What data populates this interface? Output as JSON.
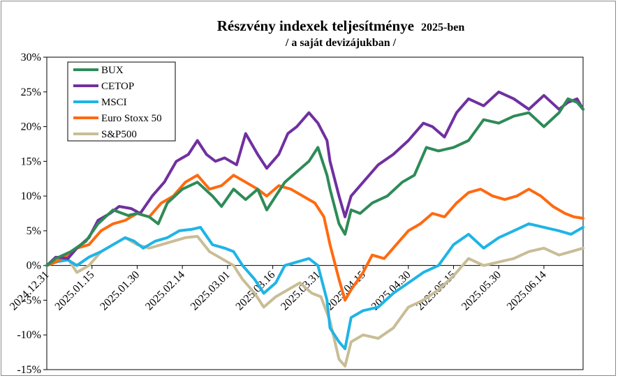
{
  "chart_data": {
    "type": "line",
    "title": "Részvény indexek teljesítménye",
    "title_suffix": "2025-ben",
    "subtitle": "/ a saját devizájukban /",
    "y_ticks": [
      "30%",
      "25%",
      "20%",
      "15%",
      "10%",
      "5%",
      "0%",
      "-5%",
      "-10%",
      "-15%"
    ],
    "x_ticks": [
      "2024.12.31",
      "2025.01.15",
      "2025.01.30",
      "2025.02.14",
      "2025.03.01",
      "2025.03.16",
      "2025.03.31",
      "2025.04.15",
      "2025.04.30",
      "2025.05.15",
      "2025.05.30",
      "2025.06.14"
    ],
    "ylim": [
      -15,
      30
    ],
    "xlim": [
      "2024.12.31",
      "2025.06.27"
    ],
    "grid": false,
    "legend": "top-left",
    "series": [
      {
        "name": "BUX",
        "color": "#2e8b57",
        "points": [
          [
            "2024.12.31",
            0
          ],
          [
            "2025.01.03",
            1
          ],
          [
            "2025.01.08",
            2
          ],
          [
            "2025.01.13",
            3.5
          ],
          [
            "2025.01.17",
            6
          ],
          [
            "2025.01.22",
            8
          ],
          [
            "2025.01.27",
            7.2
          ],
          [
            "2025.01.30",
            7.5
          ],
          [
            "2025.02.03",
            7
          ],
          [
            "2025.02.06",
            6
          ],
          [
            "2025.02.09",
            9
          ],
          [
            "2025.02.14",
            11
          ],
          [
            "2025.02.19",
            12
          ],
          [
            "2025.02.24",
            10
          ],
          [
            "2025.02.27",
            8.5
          ],
          [
            "2025.03.03",
            11
          ],
          [
            "2025.03.07",
            9.5
          ],
          [
            "2025.03.11",
            11
          ],
          [
            "2025.03.14",
            8
          ],
          [
            "2025.03.17",
            10
          ],
          [
            "2025.03.20",
            12
          ],
          [
            "2025.03.24",
            13.5
          ],
          [
            "2025.03.28",
            15
          ],
          [
            "2025.03.31",
            17
          ],
          [
            "2025.04.03",
            13
          ],
          [
            "2025.04.04",
            11
          ],
          [
            "2025.04.07",
            6
          ],
          [
            "2025.04.09",
            4.5
          ],
          [
            "2025.04.11",
            8
          ],
          [
            "2025.04.14",
            7.5
          ],
          [
            "2025.04.18",
            9
          ],
          [
            "2025.04.23",
            10
          ],
          [
            "2025.04.28",
            12
          ],
          [
            "2025.05.02",
            13
          ],
          [
            "2025.05.06",
            17
          ],
          [
            "2025.05.10",
            16.5
          ],
          [
            "2025.05.15",
            17
          ],
          [
            "2025.05.20",
            18
          ],
          [
            "2025.05.25",
            21
          ],
          [
            "2025.05.30",
            20.5
          ],
          [
            "2025.06.04",
            21.5
          ],
          [
            "2025.06.09",
            22
          ],
          [
            "2025.06.14",
            20
          ],
          [
            "2025.06.19",
            22
          ],
          [
            "2025.06.22",
            24
          ],
          [
            "2025.06.25",
            23.5
          ],
          [
            "2025.06.27",
            22.5
          ]
        ]
      },
      {
        "name": "CETOP",
        "color": "#7030a0",
        "points": [
          [
            "2024.12.31",
            0
          ],
          [
            "2025.01.03",
            1.2
          ],
          [
            "2025.01.07",
            1
          ],
          [
            "2025.01.10",
            2.5
          ],
          [
            "2025.01.14",
            4
          ],
          [
            "2025.01.17",
            6.5
          ],
          [
            "2025.01.21",
            7.5
          ],
          [
            "2025.01.24",
            8.5
          ],
          [
            "2025.01.28",
            8.2
          ],
          [
            "2025.01.31",
            7.5
          ],
          [
            "2025.02.04",
            10
          ],
          [
            "2025.02.08",
            12
          ],
          [
            "2025.02.12",
            15
          ],
          [
            "2025.02.16",
            16
          ],
          [
            "2025.02.19",
            18
          ],
          [
            "2025.02.22",
            16
          ],
          [
            "2025.02.25",
            15
          ],
          [
            "2025.02.28",
            15.5
          ],
          [
            "2025.03.04",
            14.5
          ],
          [
            "2025.03.07",
            19
          ],
          [
            "2025.03.11",
            16
          ],
          [
            "2025.03.14",
            14
          ],
          [
            "2025.03.18",
            16
          ],
          [
            "2025.03.21",
            19
          ],
          [
            "2025.03.24",
            20
          ],
          [
            "2025.03.28",
            22
          ],
          [
            "2025.03.31",
            20.5
          ],
          [
            "2025.04.03",
            18
          ],
          [
            "2025.04.04",
            15
          ],
          [
            "2025.04.07",
            10
          ],
          [
            "2025.04.09",
            7
          ],
          [
            "2025.04.11",
            10
          ],
          [
            "2025.04.15",
            12
          ],
          [
            "2025.04.20",
            14.5
          ],
          [
            "2025.04.25",
            16
          ],
          [
            "2025.04.30",
            18
          ],
          [
            "2025.05.05",
            20.5
          ],
          [
            "2025.05.08",
            20
          ],
          [
            "2025.05.12",
            18.5
          ],
          [
            "2025.05.16",
            22
          ],
          [
            "2025.05.20",
            24
          ],
          [
            "2025.05.25",
            23
          ],
          [
            "2025.05.30",
            25
          ],
          [
            "2025.06.04",
            24
          ],
          [
            "2025.06.09",
            22.5
          ],
          [
            "2025.06.14",
            24.5
          ],
          [
            "2025.06.19",
            22.5
          ],
          [
            "2025.06.22",
            23.5
          ],
          [
            "2025.06.25",
            24
          ],
          [
            "2025.06.27",
            22.5
          ]
        ]
      },
      {
        "name": "MSCI",
        "color": "#1fb4e6",
        "points": [
          [
            "2024.12.31",
            0
          ],
          [
            "2025.01.03",
            0.5
          ],
          [
            "2025.01.07",
            0.8
          ],
          [
            "2025.01.10",
            0
          ],
          [
            "2025.01.14",
            1.2
          ],
          [
            "2025.01.18",
            2
          ],
          [
            "2025.01.22",
            3
          ],
          [
            "2025.01.26",
            4
          ],
          [
            "2025.01.29",
            3.5
          ],
          [
            "2025.02.01",
            2.5
          ],
          [
            "2025.02.05",
            3.5
          ],
          [
            "2025.02.09",
            4
          ],
          [
            "2025.02.13",
            5
          ],
          [
            "2025.02.17",
            5.2
          ],
          [
            "2025.02.20",
            5.5
          ],
          [
            "2025.02.24",
            3
          ],
          [
            "2025.02.28",
            2.5
          ],
          [
            "2025.03.03",
            2
          ],
          [
            "2025.03.06",
            0
          ],
          [
            "2025.03.10",
            -2
          ],
          [
            "2025.03.13",
            -4
          ],
          [
            "2025.03.17",
            -2.5
          ],
          [
            "2025.03.20",
            0
          ],
          [
            "2025.03.24",
            0.5
          ],
          [
            "2025.03.28",
            1
          ],
          [
            "2025.03.31",
            0
          ],
          [
            "2025.04.03",
            -5
          ],
          [
            "2025.04.04",
            -9
          ],
          [
            "2025.04.07",
            -11
          ],
          [
            "2025.04.09",
            -12
          ],
          [
            "2025.04.11",
            -7.5
          ],
          [
            "2025.04.15",
            -6.5
          ],
          [
            "2025.04.20",
            -6
          ],
          [
            "2025.04.25",
            -4
          ],
          [
            "2025.04.30",
            -2.5
          ],
          [
            "2025.05.05",
            -1
          ],
          [
            "2025.05.10",
            0
          ],
          [
            "2025.05.15",
            3
          ],
          [
            "2025.05.20",
            4.5
          ],
          [
            "2025.05.25",
            2.5
          ],
          [
            "2025.05.30",
            4
          ],
          [
            "2025.06.04",
            5
          ],
          [
            "2025.06.09",
            6
          ],
          [
            "2025.06.14",
            5.5
          ],
          [
            "2025.06.19",
            5
          ],
          [
            "2025.06.23",
            4.5
          ],
          [
            "2025.06.27",
            5.5
          ]
        ]
      },
      {
        "name": "Euro Stoxx 50",
        "color": "#ff6a10",
        "points": [
          [
            "2024.12.31",
            0
          ],
          [
            "2025.01.03",
            0.5
          ],
          [
            "2025.01.07",
            1.5
          ],
          [
            "2025.01.10",
            2.5
          ],
          [
            "2025.01.14",
            3
          ],
          [
            "2025.01.18",
            5
          ],
          [
            "2025.01.22",
            6
          ],
          [
            "2025.01.26",
            6.5
          ],
          [
            "2025.01.30",
            7.5
          ],
          [
            "2025.02.03",
            7
          ],
          [
            "2025.02.07",
            9
          ],
          [
            "2025.02.11",
            10
          ],
          [
            "2025.02.15",
            12
          ],
          [
            "2025.02.19",
            13
          ],
          [
            "2025.02.23",
            11
          ],
          [
            "2025.02.27",
            11.5
          ],
          [
            "2025.03.03",
            13
          ],
          [
            "2025.03.07",
            12
          ],
          [
            "2025.03.11",
            11
          ],
          [
            "2025.03.14",
            10
          ],
          [
            "2025.03.18",
            11.5
          ],
          [
            "2025.03.22",
            11
          ],
          [
            "2025.03.26",
            10
          ],
          [
            "2025.03.30",
            9
          ],
          [
            "2025.04.02",
            7
          ],
          [
            "2025.04.04",
            3
          ],
          [
            "2025.04.07",
            -2
          ],
          [
            "2025.04.09",
            -5
          ],
          [
            "2025.04.11",
            -3.5
          ],
          [
            "2025.04.15",
            -1
          ],
          [
            "2025.04.18",
            1.5
          ],
          [
            "2025.04.22",
            1
          ],
          [
            "2025.04.26",
            3
          ],
          [
            "2025.04.30",
            5
          ],
          [
            "2025.05.04",
            6
          ],
          [
            "2025.05.08",
            7.5
          ],
          [
            "2025.05.12",
            7
          ],
          [
            "2025.05.16",
            9
          ],
          [
            "2025.05.20",
            10.5
          ],
          [
            "2025.05.24",
            11
          ],
          [
            "2025.05.28",
            10
          ],
          [
            "2025.06.01",
            9.5
          ],
          [
            "2025.06.05",
            10
          ],
          [
            "2025.06.09",
            11
          ],
          [
            "2025.06.13",
            10
          ],
          [
            "2025.06.17",
            8.5
          ],
          [
            "2025.06.21",
            7.5
          ],
          [
            "2025.06.24",
            7
          ],
          [
            "2025.06.27",
            6.8
          ]
        ]
      },
      {
        "name": "S&P500",
        "color": "#c8bd96",
        "points": [
          [
            "2024.12.31",
            0
          ],
          [
            "2025.01.03",
            0.5
          ],
          [
            "2025.01.07",
            1
          ],
          [
            "2025.01.10",
            -1
          ],
          [
            "2025.01.14",
            0
          ],
          [
            "2025.01.18",
            2
          ],
          [
            "2025.01.22",
            3
          ],
          [
            "2025.01.26",
            4
          ],
          [
            "2025.01.30",
            3
          ],
          [
            "2025.02.03",
            2.5
          ],
          [
            "2025.02.07",
            3
          ],
          [
            "2025.02.11",
            3.5
          ],
          [
            "2025.02.15",
            4
          ],
          [
            "2025.02.19",
            4.2
          ],
          [
            "2025.02.23",
            2
          ],
          [
            "2025.02.27",
            1
          ],
          [
            "2025.03.03",
            0
          ],
          [
            "2025.03.06",
            -2
          ],
          [
            "2025.03.10",
            -4
          ],
          [
            "2025.03.13",
            -6
          ],
          [
            "2025.03.17",
            -4.5
          ],
          [
            "2025.03.21",
            -3.5
          ],
          [
            "2025.03.25",
            -2.5
          ],
          [
            "2025.03.29",
            -4
          ],
          [
            "2025.04.01",
            -4.5
          ],
          [
            "2025.04.04",
            -8
          ],
          [
            "2025.04.07",
            -13.5
          ],
          [
            "2025.04.09",
            -14.5
          ],
          [
            "2025.04.11",
            -11
          ],
          [
            "2025.04.15",
            -10
          ],
          [
            "2025.04.20",
            -10.5
          ],
          [
            "2025.04.25",
            -9
          ],
          [
            "2025.04.30",
            -6
          ],
          [
            "2025.05.05",
            -5
          ],
          [
            "2025.05.10",
            -3.5
          ],
          [
            "2025.05.15",
            -1.5
          ],
          [
            "2025.05.20",
            1
          ],
          [
            "2025.05.25",
            0
          ],
          [
            "2025.05.30",
            0.5
          ],
          [
            "2025.06.04",
            1
          ],
          [
            "2025.06.09",
            2
          ],
          [
            "2025.06.14",
            2.5
          ],
          [
            "2025.06.19",
            1.5
          ],
          [
            "2025.06.23",
            2
          ],
          [
            "2025.06.27",
            2.5
          ]
        ]
      }
    ]
  }
}
